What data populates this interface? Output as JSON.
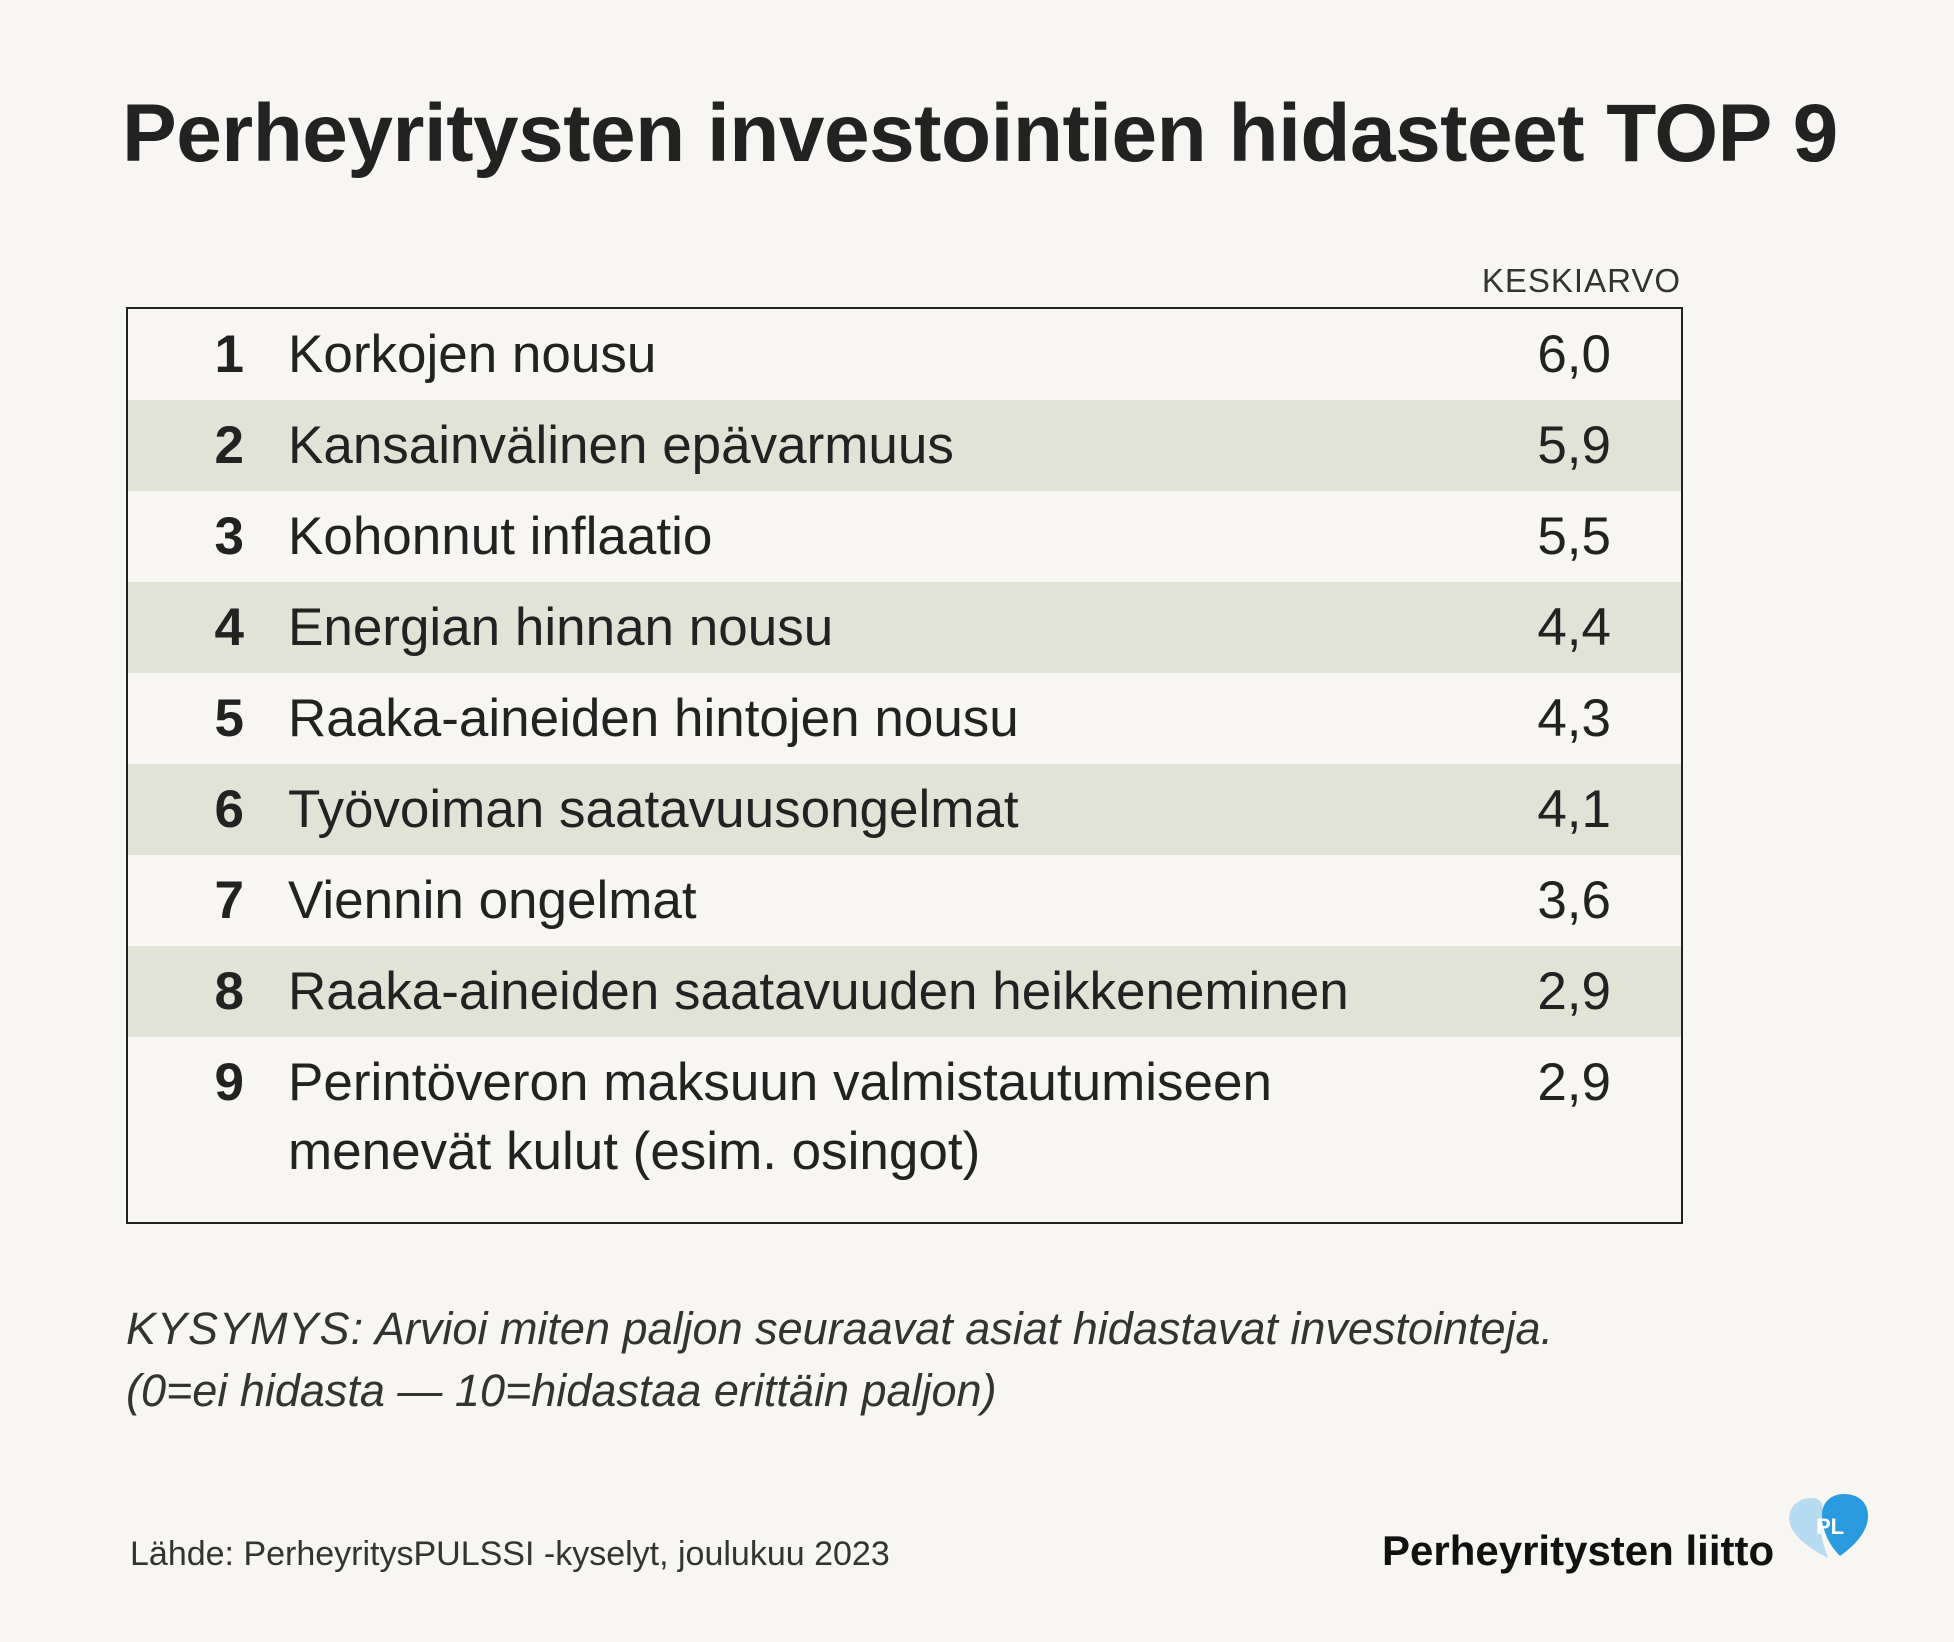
{
  "title": "Perheyritysten investointien hidasteet TOP 9",
  "chart_data": {
    "type": "table",
    "value_header": "KESKIARVO",
    "rows": [
      {
        "rank": "1",
        "label": "Korkojen nousu",
        "value": "6,0",
        "shaded": false
      },
      {
        "rank": "2",
        "label": "Kansainvälinen epävarmuus",
        "value": "5,9",
        "shaded": true
      },
      {
        "rank": "3",
        "label": "Kohonnut inflaatio",
        "value": "5,5",
        "shaded": false
      },
      {
        "rank": "4",
        "label": "Energian hinnan nousu",
        "value": "4,4",
        "shaded": true
      },
      {
        "rank": "5",
        "label": "Raaka-aineiden hintojen nousu",
        "value": "4,3",
        "shaded": false
      },
      {
        "rank": "6",
        "label": "Työvoiman saatavuusongelmat",
        "value": "4,1",
        "shaded": true
      },
      {
        "rank": "7",
        "label": "Viennin ongelmat",
        "value": "3,6",
        "shaded": false
      },
      {
        "rank": "8",
        "label": "Raaka-aineiden saatavuuden heikkeneminen",
        "value": "2,9",
        "shaded": true
      },
      {
        "rank": "9",
        "label": "Perintöveron maksuun valmistautumiseen menevät kulut (esim. osingot)",
        "value": "2,9",
        "shaded": false
      }
    ]
  },
  "question": {
    "lead": "KYSYMYS:",
    "text": "Arvioi miten paljon seuraavat asiat hidastavat investointeja.",
    "scale": "(0=ei hidasta — 10=hidastaa erittäin paljon)"
  },
  "source": "Lähde: PerheyritysPULSSI -kyselyt, joulukuu 2023",
  "brand": {
    "name": "Perheyritysten liitto",
    "logo_text": "PL",
    "logo_icon": "heart-logo-icon",
    "colors": {
      "logo_light": "#b7dcf2",
      "logo_dark": "#2b9be0"
    }
  },
  "colors": {
    "background": "#f8f6f2",
    "shaded_row": "#e0e3d6",
    "text": "#222222"
  }
}
